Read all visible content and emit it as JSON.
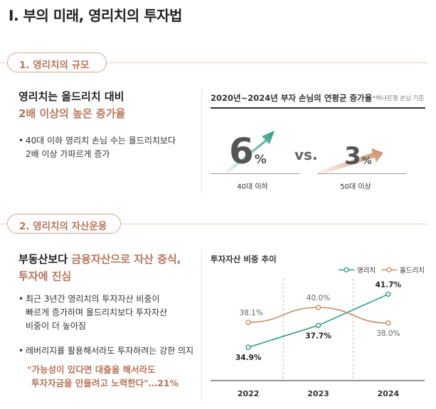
{
  "page_title": "I. 부의 미래, 영리치의 투자법",
  "section1": {
    "pill": "1. 영리치의 규모",
    "heading_line1": "영리치는 올드리치 대비",
    "heading_line2": "2배 이상의 높은 증가율",
    "bullet_line1": "40대 이하 영리치 손님 수는 올드리치보다",
    "bullet_line2": "2배 이상 가파르게 증가",
    "chart_title": "2020년~2024년 부자 손님의 연평균 증가율",
    "chart_note": "*하나은행 손님 기준",
    "vs": "vs."
  },
  "section2": {
    "pill": "2. 영리치의 자산운용",
    "heading_line1_part1": "부동산보다 ",
    "heading_line1_part2": "금융자산으로 자산 증식,",
    "heading_line2": "투자에 진심",
    "bullet1_line1": "최근 3년간 영리치의 투자자산 비중이",
    "bullet1_line2": "빠르게 증가하며 올드리치보다 투자자산",
    "bullet1_line3": "비중이 더 높아짐",
    "bullet2": "레버리지를 활용해서라도 투자하려는 강한 의지",
    "quote_line1": "\"가능성이 있다면 대출을 해서라도",
    "quote_line2": "투자자금을 만들려고 노력한다\"…21%",
    "chart_title": "투자자산 비중 추이"
  },
  "colors": {
    "young": "#2a9d84",
    "old": "#c98a62",
    "accent": "#b8755a"
  },
  "chart_data": [
    {
      "type": "bar",
      "title": "2020년~2024년 부자 손님의 연평균 증가율",
      "categories": [
        "40대 이하",
        "50대 이상"
      ],
      "values": [
        6,
        3
      ],
      "unit": "%"
    },
    {
      "type": "line",
      "title": "투자자산 비중 추이",
      "x": [
        "2022",
        "2023",
        "2024"
      ],
      "series": [
        {
          "name": "영리치",
          "values": [
            34.9,
            37.7,
            41.7
          ],
          "labels": [
            "34.9%",
            "37.7%",
            "41.7%"
          ]
        },
        {
          "name": "올드리치",
          "values": [
            38.1,
            40.0,
            38.0
          ],
          "labels": [
            "38.1%",
            "40.0%",
            "38.0%"
          ]
        }
      ],
      "ylim": [
        33,
        43
      ],
      "grid": true,
      "legend": "top-right"
    }
  ]
}
